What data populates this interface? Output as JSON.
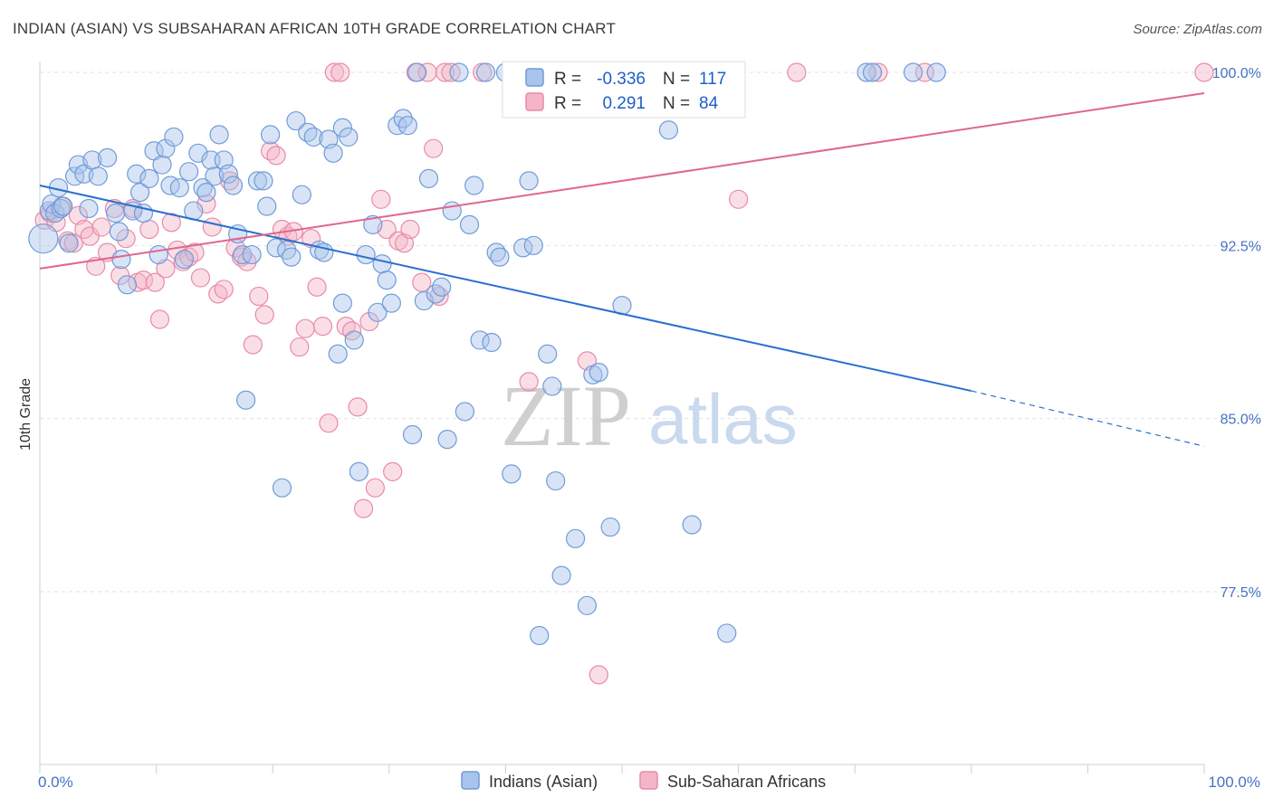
{
  "header": {
    "title": "INDIAN (ASIAN) VS SUBSAHARAN AFRICAN 10TH GRADE CORRELATION CHART",
    "source": "Source: ZipAtlas.com"
  },
  "watermark": {
    "zip": "ZIP",
    "atlas": "atlas"
  },
  "legend": {
    "series1": {
      "r_label": "R =",
      "r_value": "-0.336",
      "n_label": "N =",
      "n_value": "117"
    },
    "series2": {
      "r_label": "R =",
      "r_value": "0.291",
      "n_label": "N =",
      "n_value": "84"
    }
  },
  "bottom_legend": {
    "series1": "Indians (Asian)",
    "series2": "Sub-Saharan Africans"
  },
  "colors": {
    "blue_fill": "#a9c4ec",
    "blue_stroke": "#6f9bd8",
    "blue_line": "#2a6fce",
    "pink_fill": "#f5b5c8",
    "pink_stroke": "#e98aa8",
    "pink_line": "#e0668e",
    "grid": "#e2e2e2",
    "axis_label": "#4472c4"
  },
  "chart_data": {
    "type": "scatter",
    "title": "INDIAN (ASIAN) VS SUBSAHARAN AFRICAN 10TH GRADE CORRELATION CHART",
    "xlabel": "",
    "ylabel": "10th Grade",
    "xlim": [
      0,
      100
    ],
    "ylim": [
      70.0,
      101.0
    ],
    "x_tick_labels": [
      "0.0%",
      "100.0%"
    ],
    "y_ticks": [
      77.5,
      85.0,
      92.5,
      100.0
    ],
    "y_tick_labels": [
      "77.5%",
      "85.0%",
      "92.5%",
      "100.0%"
    ],
    "grid": true,
    "series": [
      {
        "name": "Indians (Asian)",
        "r": -0.336,
        "n": 117,
        "trend": {
          "x": [
            0,
            80,
            100
          ],
          "y": [
            95.1,
            86.2,
            83.8
          ],
          "dashed_from": 80
        },
        "points": [
          [
            0.3,
            92.8
          ],
          [
            0.8,
            94.0
          ],
          [
            1.0,
            94.3
          ],
          [
            1.3,
            93.9
          ],
          [
            1.6,
            95.0
          ],
          [
            1.8,
            94.1
          ],
          [
            2.0,
            94.2
          ],
          [
            2.5,
            92.6
          ],
          [
            3.0,
            95.5
          ],
          [
            3.3,
            96.0
          ],
          [
            3.8,
            95.6
          ],
          [
            4.2,
            94.1
          ],
          [
            4.5,
            96.2
          ],
          [
            5.0,
            95.5
          ],
          [
            5.8,
            96.3
          ],
          [
            6.5,
            93.9
          ],
          [
            6.8,
            93.1
          ],
          [
            7.0,
            91.9
          ],
          [
            7.5,
            90.8
          ],
          [
            8.0,
            94.0
          ],
          [
            8.3,
            95.6
          ],
          [
            8.6,
            94.8
          ],
          [
            8.9,
            93.9
          ],
          [
            9.4,
            95.4
          ],
          [
            9.8,
            96.6
          ],
          [
            10.2,
            92.1
          ],
          [
            10.5,
            96.0
          ],
          [
            10.8,
            96.7
          ],
          [
            11.2,
            95.1
          ],
          [
            11.5,
            97.2
          ],
          [
            12.0,
            95.0
          ],
          [
            12.4,
            91.9
          ],
          [
            12.8,
            95.7
          ],
          [
            13.2,
            94.0
          ],
          [
            13.6,
            96.5
          ],
          [
            14.0,
            95.0
          ],
          [
            14.3,
            94.8
          ],
          [
            14.7,
            96.2
          ],
          [
            15.0,
            95.5
          ],
          [
            15.4,
            97.3
          ],
          [
            15.8,
            96.2
          ],
          [
            16.2,
            95.6
          ],
          [
            16.6,
            95.1
          ],
          [
            17.0,
            93.0
          ],
          [
            17.4,
            92.1
          ],
          [
            17.7,
            85.8
          ],
          [
            18.2,
            92.1
          ],
          [
            18.7,
            95.3
          ],
          [
            19.2,
            95.3
          ],
          [
            19.5,
            94.2
          ],
          [
            19.8,
            97.3
          ],
          [
            20.3,
            92.4
          ],
          [
            20.8,
            82.0
          ],
          [
            21.2,
            92.3
          ],
          [
            21.6,
            92.0
          ],
          [
            22.0,
            97.9
          ],
          [
            22.5,
            94.7
          ],
          [
            23.0,
            97.4
          ],
          [
            23.5,
            97.2
          ],
          [
            24.0,
            92.3
          ],
          [
            24.4,
            92.2
          ],
          [
            24.8,
            97.1
          ],
          [
            25.2,
            96.5
          ],
          [
            25.6,
            87.8
          ],
          [
            26.0,
            97.6
          ],
          [
            26.5,
            97.2
          ],
          [
            26.0,
            90.0
          ],
          [
            27.0,
            88.4
          ],
          [
            27.4,
            82.7
          ],
          [
            28.0,
            92.1
          ],
          [
            28.6,
            93.4
          ],
          [
            29.0,
            89.6
          ],
          [
            29.4,
            91.7
          ],
          [
            29.8,
            91.0
          ],
          [
            30.2,
            90.0
          ],
          [
            30.7,
            97.7
          ],
          [
            31.2,
            98.0
          ],
          [
            31.6,
            97.7
          ],
          [
            32.0,
            84.3
          ],
          [
            32.4,
            100.0
          ],
          [
            33.0,
            90.1
          ],
          [
            33.4,
            95.4
          ],
          [
            34.0,
            90.4
          ],
          [
            34.5,
            90.7
          ],
          [
            35.0,
            84.1
          ],
          [
            35.4,
            94.0
          ],
          [
            36.0,
            100.0
          ],
          [
            36.5,
            85.3
          ],
          [
            36.9,
            93.4
          ],
          [
            37.3,
            95.1
          ],
          [
            37.8,
            88.4
          ],
          [
            38.3,
            100.0
          ],
          [
            38.8,
            88.3
          ],
          [
            39.2,
            92.2
          ],
          [
            39.5,
            92.0
          ],
          [
            40.0,
            100.0
          ],
          [
            40.5,
            82.6
          ],
          [
            41.0,
            100.0
          ],
          [
            41.5,
            92.4
          ],
          [
            42.0,
            95.3
          ],
          [
            42.4,
            92.5
          ],
          [
            42.9,
            75.6
          ],
          [
            43.6,
            87.8
          ],
          [
            44.0,
            86.4
          ],
          [
            44.3,
            82.3
          ],
          [
            44.8,
            78.2
          ],
          [
            45.2,
            100.0
          ],
          [
            46.0,
            79.8
          ],
          [
            47.0,
            76.9
          ],
          [
            47.5,
            86.9
          ],
          [
            48.0,
            87.0
          ],
          [
            49.0,
            80.3
          ],
          [
            50.0,
            89.9
          ],
          [
            53.0,
            100.0
          ],
          [
            54.0,
            97.5
          ],
          [
            56.0,
            80.4
          ],
          [
            59.0,
            75.7
          ],
          [
            71.0,
            100.0
          ],
          [
            71.5,
            100.0
          ],
          [
            75.0,
            100.0
          ],
          [
            77.0,
            100.0
          ]
        ]
      },
      {
        "name": "Sub-Saharan Africans",
        "r": 0.291,
        "n": 84,
        "trend": {
          "x": [
            0,
            100
          ],
          "y": [
            91.5,
            99.1
          ]
        },
        "points": [
          [
            0.4,
            93.6
          ],
          [
            0.9,
            93.9
          ],
          [
            1.4,
            93.5
          ],
          [
            1.9,
            94.2
          ],
          [
            2.4,
            92.7
          ],
          [
            2.9,
            92.6
          ],
          [
            3.3,
            93.8
          ],
          [
            3.8,
            93.2
          ],
          [
            4.3,
            92.9
          ],
          [
            4.8,
            91.6
          ],
          [
            5.3,
            93.3
          ],
          [
            5.8,
            92.2
          ],
          [
            6.4,
            94.1
          ],
          [
            6.9,
            91.2
          ],
          [
            7.4,
            92.8
          ],
          [
            8.0,
            94.1
          ],
          [
            8.4,
            90.9
          ],
          [
            8.9,
            91.0
          ],
          [
            9.4,
            93.2
          ],
          [
            9.9,
            90.9
          ],
          [
            10.3,
            89.3
          ],
          [
            10.8,
            91.5
          ],
          [
            11.3,
            93.5
          ],
          [
            11.8,
            92.3
          ],
          [
            12.3,
            91.8
          ],
          [
            12.8,
            92.0
          ],
          [
            13.3,
            92.2
          ],
          [
            13.8,
            91.1
          ],
          [
            14.3,
            94.3
          ],
          [
            14.8,
            93.3
          ],
          [
            15.3,
            90.4
          ],
          [
            15.8,
            90.6
          ],
          [
            16.3,
            95.3
          ],
          [
            16.8,
            92.4
          ],
          [
            17.3,
            92.0
          ],
          [
            17.8,
            91.8
          ],
          [
            18.3,
            88.2
          ],
          [
            18.8,
            90.3
          ],
          [
            19.3,
            89.5
          ],
          [
            19.8,
            96.6
          ],
          [
            20.3,
            96.4
          ],
          [
            20.8,
            93.2
          ],
          [
            21.3,
            92.9
          ],
          [
            21.8,
            93.1
          ],
          [
            22.3,
            88.1
          ],
          [
            22.8,
            88.9
          ],
          [
            23.3,
            92.8
          ],
          [
            23.8,
            90.7
          ],
          [
            24.3,
            89.0
          ],
          [
            24.8,
            84.8
          ],
          [
            25.3,
            100.0
          ],
          [
            25.8,
            100.0
          ],
          [
            26.3,
            89.0
          ],
          [
            26.8,
            88.8
          ],
          [
            27.3,
            85.5
          ],
          [
            27.8,
            81.1
          ],
          [
            28.3,
            89.2
          ],
          [
            28.8,
            82.0
          ],
          [
            29.3,
            94.5
          ],
          [
            29.8,
            93.2
          ],
          [
            30.3,
            82.7
          ],
          [
            30.8,
            92.7
          ],
          [
            31.3,
            92.6
          ],
          [
            31.8,
            93.2
          ],
          [
            32.3,
            100.0
          ],
          [
            32.8,
            90.9
          ],
          [
            33.3,
            100.0
          ],
          [
            33.8,
            96.7
          ],
          [
            34.3,
            90.3
          ],
          [
            34.8,
            100.0
          ],
          [
            35.3,
            100.0
          ],
          [
            38.0,
            100.0
          ],
          [
            41.0,
            98.6
          ],
          [
            42.0,
            86.6
          ],
          [
            45.0,
            99.5
          ],
          [
            47.0,
            87.5
          ],
          [
            48.0,
            73.9
          ],
          [
            50.0,
            100.0
          ],
          [
            55.0,
            100.0
          ],
          [
            60.0,
            94.5
          ],
          [
            65.0,
            100.0
          ],
          [
            72.0,
            100.0
          ],
          [
            76.0,
            100.0
          ],
          [
            100.0,
            100.0
          ]
        ]
      }
    ]
  }
}
